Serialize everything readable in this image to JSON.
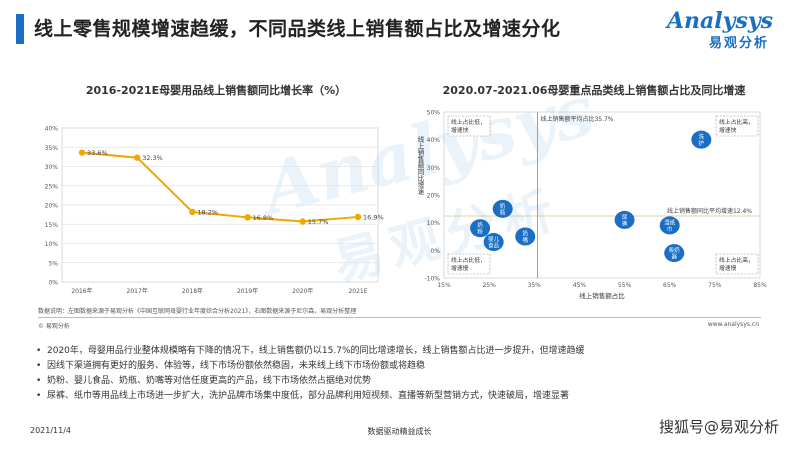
{
  "header": {
    "title": "线上零售规模增速趋缓，不同品类线上销售额占比及增速分化",
    "logo_main": "Analysys",
    "logo_sub": "易观分析"
  },
  "watermark_bg": {
    "latin": "Analysys",
    "cjk": "易观分析"
  },
  "chart_data": [
    {
      "type": "line",
      "title": "2016-2021E母婴用品线上销售额同比增长率（%）",
      "categories": [
        "2016年",
        "2017年",
        "2018年",
        "2019年",
        "2020年",
        "2021E"
      ],
      "values": [
        33.6,
        32.3,
        18.2,
        16.8,
        15.7,
        16.9
      ],
      "value_labels": [
        "33.6%",
        "32.3%",
        "18.2%",
        "16.8%",
        "15.7%",
        "16.9%"
      ],
      "ylim": [
        0,
        40
      ],
      "yticks": [
        "0%",
        "5%",
        "10%",
        "15%",
        "20%",
        "25%",
        "30%",
        "35%",
        "40%"
      ],
      "line_color": "#f0a800",
      "grid": true
    },
    {
      "type": "scatter",
      "title": "2020.07-2021.06母婴重点品类线上销售额占比及同比增速",
      "xlabel": "线上销售额占比",
      "ylabel": "线上销售额同比增速",
      "xlim": [
        15,
        85
      ],
      "ylim": [
        -10,
        50
      ],
      "xticks": [
        "15%",
        "25%",
        "35%",
        "45%",
        "55%",
        "65%",
        "75%",
        "85%"
      ],
      "yticks": [
        "-10%",
        "0%",
        "10%",
        "20%",
        "30%",
        "40%",
        "50%"
      ],
      "avg_x": 35.7,
      "avg_y": 12.4,
      "avg_x_label": "线上销售额平均占比35.7%",
      "avg_y_label": "线上销售额同比平均增速12.4%",
      "point_color": "#1a6fc4",
      "points": [
        {
          "name": "洗护",
          "x": 72,
          "y": 40
        },
        {
          "name": "奶瓶",
          "x": 28,
          "y": 15
        },
        {
          "name": "奶粉",
          "x": 23,
          "y": 8
        },
        {
          "name": "婴儿食品",
          "x": 26,
          "y": 3
        },
        {
          "name": "奶嘴",
          "x": 33,
          "y": 5
        },
        {
          "name": "尿裤",
          "x": 55,
          "y": 11
        },
        {
          "name": "湿纸巾",
          "x": 65,
          "y": 9
        },
        {
          "name": "吸奶器",
          "x": 66,
          "y": -1
        }
      ],
      "quadrant_labels": [
        {
          "text": [
            "线上占比低，",
            "增速快"
          ]
        },
        {
          "text": [
            "线上占比高，",
            "增速快"
          ]
        },
        {
          "text": [
            "线上占比低，",
            "增速慢"
          ]
        },
        {
          "text": [
            "线上占比高，",
            "增速慢"
          ]
        }
      ]
    }
  ],
  "source": "数据说明：左图数据来源于易观分析《中国互联网母婴行业年度综合分析2021》，右图数据来源于尼尔森，易观分析整理",
  "copyright": "© 易观分析",
  "site": "www.analysys.cn",
  "bullets": [
    "2020年，母婴用品行业整体规模略有下降的情况下，线上销售额仍以15.7%的同比增速增长，线上销售额占比进一步提升，但增速趋缓",
    "因线下渠道拥有更好的服务、体验等，线下市场份额依然稳固，未来线上线下市场份额或将趋稳",
    "奶粉、婴儿食品、奶瓶、奶嘴等对信任度更高的产品，线下市场依然占据绝对优势",
    "尿裤、纸巾等用品线上市场进一步扩大，洗护品牌市场集中度低，部分品牌利用短视频、直播等新型营销方式，快速破局，增速显著"
  ],
  "footer": {
    "date": "2021/11/4",
    "slogan": "数据驱动精益成长",
    "watermark": "搜狐号@易观分析"
  }
}
